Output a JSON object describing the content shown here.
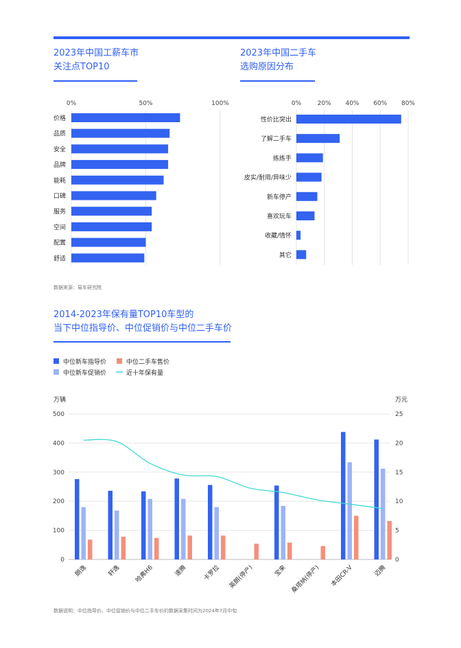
{
  "colors": {
    "accent": "#2f5ff5",
    "bar_blue": "#3363f0",
    "bar_light_blue": "#9db4f7",
    "bar_salmon": "#f4907b",
    "line_cyan": "#3fd9d0"
  },
  "chart1": {
    "title_line1": "2023年中国工薪车市",
    "title_line2": "关注点TOP10"
  },
  "chart2": {
    "title_line1": "2023年中国二手车",
    "title_line2": "选购原因分布"
  },
  "source_note": "数据来源：易车研究院",
  "chart3": {
    "title_line1": "2014-2023年保有量TOP10车型的",
    "title_line2": "当下中位指导价、中位促销价与中位二手车价"
  },
  "footnote": "数据说明：中位指导价、中位促销价与中位二手车价的数据采集时间为2024年7月中旬",
  "chart_data": [
    {
      "type": "bar",
      "orientation": "horizontal",
      "categories": [
        "价格",
        "品质",
        "安全",
        "品牌",
        "能耗",
        "口碑",
        "服务",
        "空间",
        "配置",
        "舒适"
      ],
      "values": [
        73,
        66,
        65,
        65,
        62,
        57,
        54,
        54,
        50,
        49
      ],
      "xlim": [
        0,
        100
      ],
      "xticks": [
        "0%",
        "50%",
        "100%"
      ],
      "grid": true
    },
    {
      "type": "bar",
      "orientation": "horizontal",
      "categories": [
        "性价比突出",
        "了解二手车",
        "练练手",
        "皮实/耐用/异味少",
        "新车停产",
        "喜欢玩车",
        "收藏/情怀",
        "其它"
      ],
      "values": [
        75,
        31,
        19,
        18,
        15,
        13,
        3,
        7
      ],
      "xlim": [
        0,
        80
      ],
      "xticks": [
        "0%",
        "20%",
        "40%",
        "60%",
        "80%"
      ],
      "grid": true
    },
    {
      "type": "bar+line",
      "categories": [
        "朗逸",
        "轩逸",
        "哈弗H6",
        "速腾",
        "卡罗拉",
        "英朗(停产)",
        "宝来",
        "桑塔纳(停产)",
        "本田CR-V",
        "迈腾"
      ],
      "legend": [
        "中位新车指导价",
        "中位二手车售价",
        "中位新车促销价",
        "近十年保有量"
      ],
      "y_left_unit": "万辆",
      "y_right_unit": "万元",
      "ylim_left": [
        0,
        500
      ],
      "ylim_right": [
        0,
        25
      ],
      "yticks_left": [
        "0",
        "100",
        "200",
        "300",
        "400",
        "500"
      ],
      "yticks_right": [
        "0",
        "5",
        "10",
        "15",
        "20",
        "25"
      ],
      "series": [
        {
          "name": "中位新车指导价",
          "axis": "right",
          "values": [
            13.8,
            11.8,
            11.7,
            13.9,
            12.8,
            null,
            12.7,
            null,
            21.9,
            20.6
          ]
        },
        {
          "name": "中位新车促销价",
          "axis": "right",
          "values": [
            9.0,
            8.4,
            10.4,
            10.4,
            9.0,
            null,
            9.2,
            null,
            16.7,
            15.6
          ]
        },
        {
          "name": "中位二手车售价",
          "axis": "right",
          "values": [
            3.4,
            3.9,
            3.7,
            4.1,
            4.1,
            2.7,
            2.9,
            2.3,
            7.5,
            6.6
          ]
        },
        {
          "name": "近十年保有量",
          "axis": "left",
          "type": "line",
          "values": [
            410,
            405,
            330,
            290,
            285,
            245,
            230,
            205,
            190,
            175
          ]
        }
      ]
    }
  ]
}
